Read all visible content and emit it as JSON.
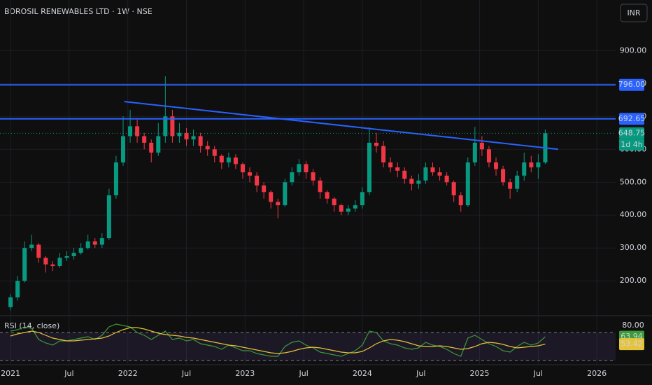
{
  "chart_data": {
    "type": "candlestick",
    "title": "BOROSIL RENEWABLES LTD · 1W · NSE",
    "currency": "INR",
    "up_color": "#089981",
    "down_color": "#f23645",
    "x": [
      2021,
      2021.06,
      2021.12,
      2021.18,
      2021.24,
      2021.3,
      2021.36,
      2021.42,
      2021.48,
      2021.54,
      2021.6,
      2021.66,
      2021.72,
      2021.78,
      2021.84,
      2021.9,
      2021.96,
      2022.02,
      2022.08,
      2022.14,
      2022.2,
      2022.26,
      2022.32,
      2022.38,
      2022.44,
      2022.5,
      2022.56,
      2022.62,
      2022.68,
      2022.74,
      2022.8,
      2022.86,
      2022.92,
      2022.98,
      2023.04,
      2023.1,
      2023.16,
      2023.22,
      2023.28,
      2023.34,
      2023.4,
      2023.46,
      2023.52,
      2023.58,
      2023.64,
      2023.7,
      2023.76,
      2023.82,
      2023.88,
      2023.94,
      2024,
      2024.06,
      2024.12,
      2024.18,
      2024.24,
      2024.3,
      2024.36,
      2024.42,
      2024.48,
      2024.54,
      2024.6,
      2024.66,
      2024.72,
      2024.78,
      2024.84,
      2024.9,
      2024.96,
      2025.02,
      2025.08,
      2025.14,
      2025.2,
      2025.26,
      2025.32,
      2025.38,
      2025.44,
      2025.5,
      2025.56
    ],
    "open": [
      120,
      150,
      200,
      300,
      310,
      270,
      250,
      245,
      270,
      275,
      285,
      300,
      320,
      310,
      330,
      460,
      560,
      640,
      670,
      640,
      620,
      590,
      640,
      700,
      640,
      650,
      630,
      640,
      610,
      600,
      580,
      560,
      575,
      555,
      530,
      520,
      490,
      470,
      440,
      430,
      500,
      530,
      555,
      530,
      505,
      470,
      450,
      430,
      410,
      420,
      430,
      470,
      620,
      610,
      560,
      545,
      535,
      510,
      495,
      505,
      545,
      530,
      520,
      500,
      460,
      430,
      560,
      620,
      600,
      560,
      540,
      500,
      480,
      520,
      560,
      545,
      560
    ],
    "high": [
      160,
      215,
      320,
      340,
      315,
      275,
      260,
      285,
      290,
      300,
      315,
      340,
      330,
      345,
      480,
      580,
      700,
      720,
      690,
      650,
      630,
      680,
      822,
      720,
      680,
      665,
      660,
      650,
      625,
      610,
      585,
      590,
      585,
      560,
      545,
      530,
      500,
      475,
      450,
      510,
      545,
      570,
      565,
      540,
      515,
      475,
      455,
      435,
      430,
      445,
      485,
      667,
      650,
      625,
      575,
      560,
      545,
      520,
      525,
      560,
      560,
      545,
      530,
      505,
      470,
      575,
      668,
      640,
      610,
      575,
      550,
      510,
      535,
      590,
      580,
      585,
      660
    ],
    "low": [
      110,
      140,
      195,
      290,
      255,
      225,
      230,
      240,
      260,
      265,
      280,
      295,
      300,
      300,
      325,
      450,
      550,
      620,
      620,
      600,
      560,
      580,
      620,
      620,
      620,
      610,
      610,
      590,
      580,
      560,
      540,
      545,
      540,
      510,
      500,
      470,
      450,
      420,
      390,
      425,
      490,
      520,
      510,
      490,
      450,
      435,
      410,
      400,
      400,
      410,
      420,
      460,
      590,
      545,
      530,
      515,
      495,
      475,
      480,
      495,
      520,
      505,
      490,
      440,
      410,
      425,
      550,
      580,
      545,
      520,
      490,
      450,
      470,
      505,
      530,
      510,
      555
    ],
    "close": [
      150,
      200,
      300,
      310,
      270,
      250,
      245,
      270,
      275,
      285,
      300,
      320,
      310,
      330,
      460,
      560,
      640,
      670,
      640,
      620,
      590,
      640,
      700,
      640,
      650,
      630,
      640,
      610,
      600,
      580,
      560,
      575,
      555,
      530,
      520,
      490,
      470,
      440,
      430,
      500,
      530,
      555,
      530,
      505,
      470,
      450,
      430,
      410,
      420,
      430,
      470,
      620,
      610,
      560,
      545,
      535,
      510,
      495,
      505,
      545,
      530,
      520,
      500,
      460,
      430,
      560,
      620,
      600,
      560,
      540,
      500,
      480,
      520,
      560,
      545,
      560,
      648.75
    ],
    "countdown": "1d 4h",
    "xlim": [
      2020.91,
      2026.16
    ],
    "xticks": [
      2021,
      {
        "value": 2021.5,
        "label": "Jul"
      },
      2022,
      {
        "value": 2022.5,
        "label": "Jul"
      },
      2023,
      {
        "value": 2023.5,
        "label": "Jul"
      },
      2024,
      {
        "value": 2024.5,
        "label": "Jul"
      },
      2025,
      {
        "value": 2025.5,
        "label": "Jul"
      },
      2026
    ],
    "ylim": [
      94,
      1054
    ],
    "yticks": [
      {
        "value": 200,
        "label": "200.00"
      },
      {
        "value": 300,
        "label": "300.00"
      },
      {
        "value": 400,
        "label": "400.00"
      },
      {
        "value": 500,
        "label": "500.00"
      },
      {
        "value": 600,
        "label": "600.00"
      },
      {
        "value": 700,
        "label": "700.00"
      },
      {
        "value": 800,
        "label": "800.00"
      },
      {
        "value": 900,
        "label": "900.00"
      }
    ],
    "hlines": [
      {
        "value": 796,
        "label": "796.00",
        "color": "#2962ff"
      },
      {
        "value": 692.65,
        "label": "692.65",
        "color": "#2962ff"
      }
    ],
    "trendline": {
      "x": [
        2021.97,
        2025.67
      ],
      "y": [
        745,
        600
      ],
      "color": "#2962ff"
    },
    "rsi": {
      "title": "RSI (14, close)",
      "color": "#3d9a3a",
      "ma_color": "#e5c33a",
      "ylim": [
        25,
        90
      ],
      "yticks": [
        {
          "value": 80,
          "label": "80.00"
        }
      ],
      "bands": [
        70,
        30
      ],
      "values": [
        72,
        74,
        78,
        76,
        60,
        55,
        52,
        58,
        58,
        60,
        62,
        64,
        60,
        66,
        78,
        82,
        80,
        78,
        70,
        66,
        60,
        66,
        72,
        60,
        62,
        58,
        60,
        54,
        52,
        50,
        46,
        52,
        48,
        44,
        44,
        40,
        38,
        36,
        36,
        50,
        56,
        58,
        52,
        48,
        42,
        40,
        38,
        36,
        40,
        44,
        52,
        72,
        70,
        58,
        54,
        52,
        48,
        46,
        48,
        56,
        52,
        50,
        46,
        40,
        36,
        62,
        66,
        60,
        54,
        50,
        44,
        42,
        50,
        56,
        52,
        55,
        63.94
      ],
      "ma": [
        65,
        68,
        70,
        72,
        70,
        66,
        62,
        60,
        58,
        58,
        59,
        60,
        61,
        62,
        65,
        70,
        74,
        77,
        77,
        75,
        72,
        69,
        67,
        66,
        65,
        63,
        62,
        60,
        58,
        56,
        54,
        52,
        51,
        49,
        47,
        45,
        43,
        41,
        40,
        41,
        43,
        46,
        48,
        49,
        48,
        46,
        44,
        42,
        41,
        41,
        43,
        48,
        54,
        58,
        60,
        59,
        57,
        54,
        51,
        50,
        50,
        51,
        50,
        48,
        46,
        47,
        50,
        54,
        56,
        55,
        53,
        50,
        48,
        49,
        50,
        51,
        53.42
      ]
    }
  }
}
